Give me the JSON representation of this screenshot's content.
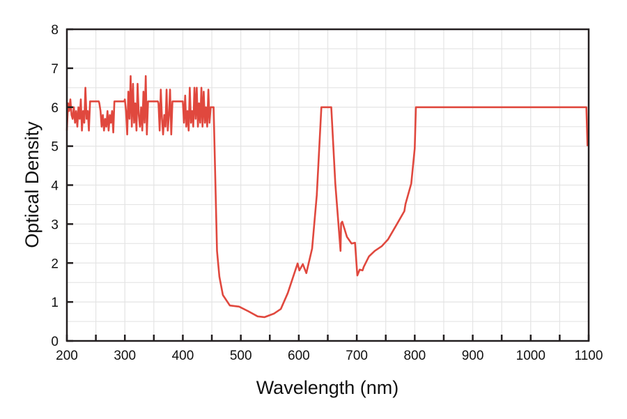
{
  "chart_data": {
    "type": "line",
    "title": "",
    "xlabel": "Wavelength (nm)",
    "ylabel": "Optical Density",
    "xlim": [
      200,
      1100
    ],
    "ylim": [
      0,
      8
    ],
    "xticks": [
      200,
      300,
      400,
      500,
      600,
      700,
      800,
      900,
      1000,
      1100
    ],
    "yticks": [
      0,
      1,
      2,
      3,
      4,
      5,
      6,
      7,
      8
    ],
    "grid": true,
    "line_color": "#e0483e",
    "series": [
      {
        "name": "Optical Density",
        "x": [
          200,
          202,
          204,
          206,
          208,
          210,
          212,
          214,
          216,
          218,
          220,
          222,
          224,
          226,
          228,
          230,
          232,
          234,
          236,
          238,
          240,
          255,
          256,
          258,
          260,
          262,
          264,
          266,
          268,
          270,
          272,
          274,
          276,
          278,
          280,
          282,
          299,
          300,
          302,
          304,
          306,
          308,
          310,
          312,
          314,
          316,
          318,
          320,
          322,
          324,
          326,
          328,
          330,
          332,
          334,
          336,
          338,
          340,
          357,
          358,
          360,
          362,
          364,
          366,
          368,
          370,
          372,
          374,
          376,
          378,
          380,
          382,
          400,
          402,
          404,
          406,
          408,
          410,
          412,
          414,
          416,
          418,
          420,
          422,
          424,
          426,
          428,
          430,
          432,
          434,
          436,
          438,
          440,
          442,
          444,
          446,
          448,
          450,
          453,
          459,
          463,
          469,
          481,
          497,
          513,
          529,
          541,
          557,
          569,
          581,
          598,
          601,
          607,
          613,
          623,
          631,
          639,
          656,
          663,
          672,
          673,
          675,
          683,
          691,
          697,
          701,
          705,
          710,
          712,
          721,
          731,
          743,
          754,
          770,
          782,
          784,
          794,
          800,
          802,
          1096,
          1098
        ],
        "y": [
          5.4,
          6.1,
          5.9,
          6.2,
          5.8,
          5.7,
          6.0,
          5.6,
          5.9,
          5.5,
          6.0,
          5.7,
          6.2,
          5.4,
          5.9,
          5.6,
          6.5,
          5.7,
          5.9,
          5.4,
          6.15,
          6.15,
          6.1,
          5.9,
          5.5,
          5.8,
          5.4,
          5.7,
          5.5,
          5.9,
          5.4,
          5.8,
          5.6,
          5.9,
          5.35,
          6.15,
          6.15,
          6.2,
          5.9,
          5.3,
          6.4,
          5.7,
          6.8,
          5.5,
          6.6,
          5.6,
          6.1,
          5.4,
          6.6,
          5.8,
          5.5,
          6.0,
          5.4,
          6.4,
          5.6,
          6.8,
          5.3,
          6.15,
          6.15,
          6.1,
          5.4,
          6.45,
          5.7,
          5.3,
          5.8,
          5.5,
          6.45,
          5.4,
          5.8,
          6.45,
          5.3,
          6.15,
          6.15,
          5.6,
          6.3,
          5.5,
          5.9,
          5.4,
          6.5,
          5.6,
          5.9,
          5.5,
          6.5,
          5.7,
          6.5,
          5.5,
          6.1,
          5.6,
          6.5,
          5.5,
          6.4,
          5.6,
          6.0,
          5.5,
          6.45,
          5.6,
          6.0,
          6.0,
          6.0,
          2.31,
          1.65,
          1.18,
          0.91,
          0.88,
          0.76,
          0.63,
          0.61,
          0.7,
          0.82,
          1.23,
          1.99,
          1.81,
          1.97,
          1.74,
          2.37,
          3.74,
          6.0,
          6.0,
          4.04,
          2.31,
          3.02,
          3.06,
          2.67,
          2.5,
          2.52,
          1.68,
          1.83,
          1.81,
          1.9,
          2.17,
          2.31,
          2.43,
          2.61,
          3.02,
          3.33,
          3.51,
          4.04,
          4.94,
          6.0,
          6.0,
          5.0
        ]
      }
    ]
  }
}
